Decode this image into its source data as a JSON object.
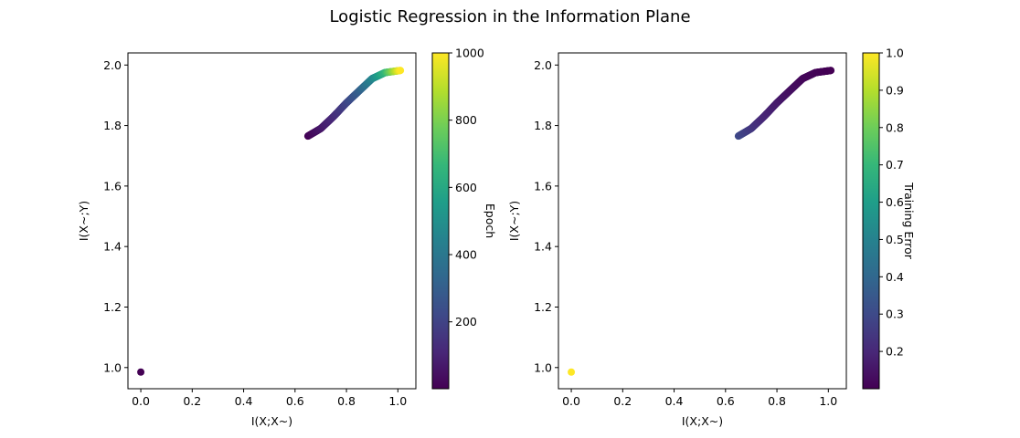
{
  "figure": {
    "title": "Logistic Regression in the Information Plane"
  },
  "chart_data": [
    {
      "type": "scatter",
      "xlabel": "I(X;X~)",
      "ylabel": "I(X~;Y)",
      "xlim": [
        -0.05,
        1.07
      ],
      "ylim": [
        0.93,
        2.04
      ],
      "xticks": [
        "0.0",
        "0.2",
        "0.4",
        "0.6",
        "0.8",
        "1.0"
      ],
      "yticks": [
        "1.0",
        "1.2",
        "1.4",
        "1.6",
        "1.8",
        "2.0"
      ],
      "grid": false,
      "colormap": "viridis",
      "colorbar": {
        "label": "Epoch",
        "range": [
          1,
          1000
        ],
        "ticks": [
          "200",
          "400",
          "600",
          "800",
          "1000"
        ]
      },
      "color_by": "epoch",
      "points": [
        {
          "x": 0.0,
          "y": 0.985,
          "c": 1
        },
        {
          "x": 0.65,
          "y": 1.765,
          "c": 2
        },
        {
          "x": 0.7,
          "y": 1.79,
          "c": 60
        },
        {
          "x": 0.75,
          "y": 1.83,
          "c": 120
        },
        {
          "x": 0.8,
          "y": 1.875,
          "c": 200
        },
        {
          "x": 0.85,
          "y": 1.915,
          "c": 300
        },
        {
          "x": 0.9,
          "y": 1.955,
          "c": 450
        },
        {
          "x": 0.95,
          "y": 1.975,
          "c": 650
        },
        {
          "x": 1.01,
          "y": 1.982,
          "c": 1000
        }
      ]
    },
    {
      "type": "scatter",
      "xlabel": "I(X;X~)",
      "ylabel": "I(X~;Y)",
      "xlim": [
        -0.05,
        1.07
      ],
      "ylim": [
        0.93,
        2.04
      ],
      "xticks": [
        "0.0",
        "0.2",
        "0.4",
        "0.6",
        "0.8",
        "1.0"
      ],
      "yticks": [
        "1.0",
        "1.2",
        "1.4",
        "1.6",
        "1.8",
        "2.0"
      ],
      "grid": false,
      "colormap": "viridis",
      "colorbar": {
        "label": "Training Error",
        "range": [
          0.1,
          1.0
        ],
        "ticks": [
          "0.2",
          "0.3",
          "0.4",
          "0.5",
          "0.6",
          "0.7",
          "0.8",
          "0.9",
          "1.0"
        ]
      },
      "color_by": "training_error",
      "points": [
        {
          "x": 0.0,
          "y": 0.985,
          "c": 1.0
        },
        {
          "x": 0.65,
          "y": 1.765,
          "c": 0.3
        },
        {
          "x": 0.7,
          "y": 1.79,
          "c": 0.25
        },
        {
          "x": 0.75,
          "y": 1.83,
          "c": 0.2
        },
        {
          "x": 0.8,
          "y": 1.875,
          "c": 0.17
        },
        {
          "x": 0.85,
          "y": 1.915,
          "c": 0.14
        },
        {
          "x": 0.9,
          "y": 1.955,
          "c": 0.12
        },
        {
          "x": 0.95,
          "y": 1.975,
          "c": 0.11
        },
        {
          "x": 1.01,
          "y": 1.982,
          "c": 0.1
        }
      ]
    }
  ]
}
